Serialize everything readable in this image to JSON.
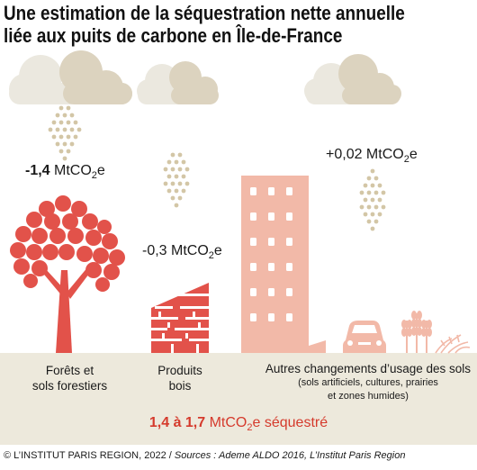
{
  "title": {
    "line1": "Une estimation de la séquestration nette annuelle",
    "line2": "liée aux puits de carbone en Île-de-France"
  },
  "values": {
    "forest_number": "-1,4",
    "forest_unit_a": " MtCO",
    "forest_unit_sub": "2",
    "forest_unit_b": "e",
    "wood_number": "-0,3",
    "wood_unit_a": " MtCO",
    "wood_unit_sub": "2",
    "wood_unit_b": "e",
    "soil_number": "+0,02",
    "soil_unit_a": " MtCO",
    "soil_unit_sub": "2",
    "soil_unit_b": "e"
  },
  "categories": {
    "forest_line1": "Forêts et",
    "forest_line2": "sols forestiers",
    "wood_line1": "Produits",
    "wood_line2": "bois",
    "soil_main": "Autres changements d’usage des sols",
    "soil_detail1": "(sols artificiels, cultures, prairies",
    "soil_detail2": "et zones humides)"
  },
  "total": {
    "range": "1,4 à 1,7",
    "unit_a": " MtCO",
    "unit_sub": "2",
    "unit_b": "e séquestré"
  },
  "footer": {
    "copyright": "© L’INSTITUT PARIS REGION, 2022 / ",
    "sources": "Sources : Ademe ALDO 2016, L’Institut Paris Region"
  },
  "colors": {
    "accent_red": "#d53a2c",
    "tree_red": "#e2524a",
    "building_salmon": "#f2b9a8",
    "cloud_gray": "#ebe8df",
    "cloud_beige": "#dcd3bf",
    "dot_beige": "#d3c6a6",
    "ground": "#ede9dc"
  },
  "icons": [
    "cloud-icon",
    "carbon-dots-icon",
    "tree-icon",
    "wood-stack-icon",
    "building-icon",
    "car-icon",
    "wheat-icon",
    "grass-icon"
  ]
}
